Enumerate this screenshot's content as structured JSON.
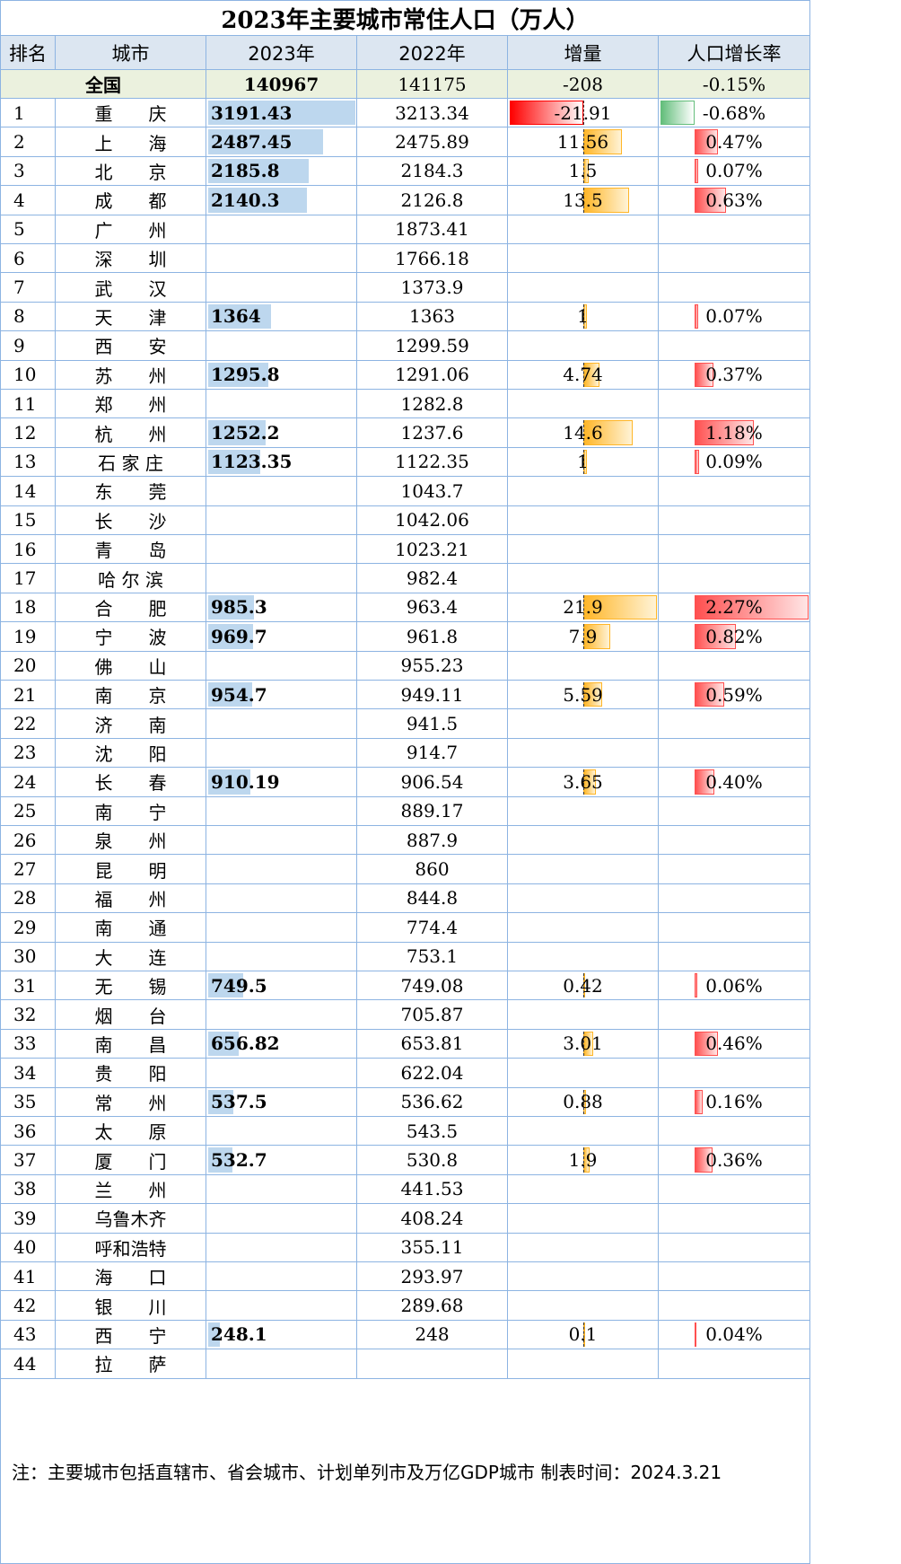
{
  "title": "2023年主要城市常住人口（万人）",
  "headers": [
    "排名",
    "城市",
    "2023年",
    "2022年",
    "增量",
    "人口增长率"
  ],
  "national": {
    "label": "全国",
    "y2023": "140967",
    "y2022": "141175",
    "inc": "-208",
    "rate": "-0.15%"
  },
  "note": "注：主要城市包括直辖市、省会城市、计划单列市及万亿GDP城市   制表时间：2024.3.21",
  "colors": {
    "grid": "#8db4e2",
    "header_bg": "#dce6f1",
    "national_bg": "#ebf1de",
    "bar_blue": "#bdd7ee",
    "bar_orange": "#ffb628",
    "bar_red": "#ff5050",
    "bar_green": "#63be7b"
  },
  "chart_data": {
    "type": "table",
    "title": "2023年主要城市常住人口（万人）",
    "columns": [
      "排名",
      "城市",
      "2023年",
      "2022年",
      "增量",
      "人口增长率"
    ],
    "rows": [
      {
        "rank": "1",
        "city": "重　　庆",
        "y2023": "3191.43",
        "y2022": "3213.34",
        "inc": "-21.91",
        "rate": "-0.68%",
        "inc_value": -21.91,
        "rate_value": -0.68,
        "y2023_value": 3191.43
      },
      {
        "rank": "2",
        "city": "上　　海",
        "y2023": "2487.45",
        "y2022": "2475.89",
        "inc": "11.56",
        "rate": "0.47%",
        "inc_value": 11.56,
        "rate_value": 0.47,
        "y2023_value": 2487.45
      },
      {
        "rank": "3",
        "city": "北　　京",
        "y2023": "2185.8",
        "y2022": "2184.3",
        "inc": "1.5",
        "rate": "0.07%",
        "inc_value": 1.5,
        "rate_value": 0.07,
        "y2023_value": 2185.8
      },
      {
        "rank": "4",
        "city": "成　　都",
        "y2023": "2140.3",
        "y2022": "2126.8",
        "inc": "13.5",
        "rate": "0.63%",
        "inc_value": 13.5,
        "rate_value": 0.63,
        "y2023_value": 2140.3
      },
      {
        "rank": "5",
        "city": "广　　州",
        "y2023": "",
        "y2022": "1873.41",
        "inc": "",
        "rate": ""
      },
      {
        "rank": "6",
        "city": "深　　圳",
        "y2023": "",
        "y2022": "1766.18",
        "inc": "",
        "rate": ""
      },
      {
        "rank": "7",
        "city": "武　　汉",
        "y2023": "",
        "y2022": "1373.9",
        "inc": "",
        "rate": ""
      },
      {
        "rank": "8",
        "city": "天　　津",
        "y2023": "1364",
        "y2022": "1363",
        "inc": "1",
        "rate": "0.07%",
        "inc_value": 1,
        "rate_value": 0.07,
        "y2023_value": 1364
      },
      {
        "rank": "9",
        "city": "西　　安",
        "y2023": "",
        "y2022": "1299.59",
        "inc": "",
        "rate": ""
      },
      {
        "rank": "10",
        "city": "苏　　州",
        "y2023": "1295.8",
        "y2022": "1291.06",
        "inc": "4.74",
        "rate": "0.37%",
        "inc_value": 4.74,
        "rate_value": 0.37,
        "y2023_value": 1295.8
      },
      {
        "rank": "11",
        "city": "郑　　州",
        "y2023": "",
        "y2022": "1282.8",
        "inc": "",
        "rate": ""
      },
      {
        "rank": "12",
        "city": "杭　　州",
        "y2023": "1252.2",
        "y2022": "1237.6",
        "inc": "14.6",
        "rate": "1.18%",
        "inc_value": 14.6,
        "rate_value": 1.18,
        "y2023_value": 1252.2
      },
      {
        "rank": "13",
        "city": "石 家 庄",
        "y2023": "1123.35",
        "y2022": "1122.35",
        "inc": "1",
        "rate": "0.09%",
        "inc_value": 1,
        "rate_value": 0.09,
        "y2023_value": 1123.35
      },
      {
        "rank": "14",
        "city": "东　　莞",
        "y2023": "",
        "y2022": "1043.7",
        "inc": "",
        "rate": ""
      },
      {
        "rank": "15",
        "city": "长　　沙",
        "y2023": "",
        "y2022": "1042.06",
        "inc": "",
        "rate": ""
      },
      {
        "rank": "16",
        "city": "青　　岛",
        "y2023": "",
        "y2022": "1023.21",
        "inc": "",
        "rate": ""
      },
      {
        "rank": "17",
        "city": "哈 尔 滨",
        "y2023": "",
        "y2022": "982.4",
        "inc": "",
        "rate": ""
      },
      {
        "rank": "18",
        "city": "合　　肥",
        "y2023": "985.3",
        "y2022": "963.4",
        "inc": "21.9",
        "rate": "2.27%",
        "inc_value": 21.9,
        "rate_value": 2.27,
        "y2023_value": 985.3
      },
      {
        "rank": "19",
        "city": "宁　　波",
        "y2023": "969.7",
        "y2022": "961.8",
        "inc": "7.9",
        "rate": "0.82%",
        "inc_value": 7.9,
        "rate_value": 0.82,
        "y2023_value": 969.7
      },
      {
        "rank": "20",
        "city": "佛　　山",
        "y2023": "",
        "y2022": "955.23",
        "inc": "",
        "rate": ""
      },
      {
        "rank": "21",
        "city": "南　　京",
        "y2023": "954.7",
        "y2022": "949.11",
        "inc": "5.59",
        "rate": "0.59%",
        "inc_value": 5.59,
        "rate_value": 0.59,
        "y2023_value": 954.7
      },
      {
        "rank": "22",
        "city": "济　　南",
        "y2023": "",
        "y2022": "941.5",
        "inc": "",
        "rate": ""
      },
      {
        "rank": "23",
        "city": "沈　　阳",
        "y2023": "",
        "y2022": "914.7",
        "inc": "",
        "rate": ""
      },
      {
        "rank": "24",
        "city": "长　　春",
        "y2023": "910.19",
        "y2022": "906.54",
        "inc": "3.65",
        "rate": "0.40%",
        "inc_value": 3.65,
        "rate_value": 0.4,
        "y2023_value": 910.19
      },
      {
        "rank": "25",
        "city": "南　　宁",
        "y2023": "",
        "y2022": "889.17",
        "inc": "",
        "rate": ""
      },
      {
        "rank": "26",
        "city": "泉　　州",
        "y2023": "",
        "y2022": "887.9",
        "inc": "",
        "rate": ""
      },
      {
        "rank": "27",
        "city": "昆　　明",
        "y2023": "",
        "y2022": "860",
        "inc": "",
        "rate": ""
      },
      {
        "rank": "28",
        "city": "福　　州",
        "y2023": "",
        "y2022": "844.8",
        "inc": "",
        "rate": ""
      },
      {
        "rank": "29",
        "city": "南　　通",
        "y2023": "",
        "y2022": "774.4",
        "inc": "",
        "rate": ""
      },
      {
        "rank": "30",
        "city": "大　　连",
        "y2023": "",
        "y2022": "753.1",
        "inc": "",
        "rate": ""
      },
      {
        "rank": "31",
        "city": "无　　锡",
        "y2023": "749.5",
        "y2022": "749.08",
        "inc": "0.42",
        "rate": "0.06%",
        "inc_value": 0.42,
        "rate_value": 0.06,
        "y2023_value": 749.5
      },
      {
        "rank": "32",
        "city": "烟　　台",
        "y2023": "",
        "y2022": "705.87",
        "inc": "",
        "rate": ""
      },
      {
        "rank": "33",
        "city": "南　　昌",
        "y2023": "656.82",
        "y2022": "653.81",
        "inc": "3.01",
        "rate": "0.46%",
        "inc_value": 3.01,
        "rate_value": 0.46,
        "y2023_value": 656.82
      },
      {
        "rank": "34",
        "city": "贵　　阳",
        "y2023": "",
        "y2022": "622.04",
        "inc": "",
        "rate": ""
      },
      {
        "rank": "35",
        "city": "常　　州",
        "y2023": "537.5",
        "y2022": "536.62",
        "inc": "0.88",
        "rate": "0.16%",
        "inc_value": 0.88,
        "rate_value": 0.16,
        "y2023_value": 537.5
      },
      {
        "rank": "36",
        "city": "太　　原",
        "y2023": "",
        "y2022": "543.5",
        "inc": "",
        "rate": ""
      },
      {
        "rank": "37",
        "city": "厦　　门",
        "y2023": "532.7",
        "y2022": "530.8",
        "inc": "1.9",
        "rate": "0.36%",
        "inc_value": 1.9,
        "rate_value": 0.36,
        "y2023_value": 532.7
      },
      {
        "rank": "38",
        "city": "兰　　州",
        "y2023": "",
        "y2022": "441.53",
        "inc": "",
        "rate": ""
      },
      {
        "rank": "39",
        "city": "乌鲁木齐",
        "y2023": "",
        "y2022": "408.24",
        "inc": "",
        "rate": ""
      },
      {
        "rank": "40",
        "city": "呼和浩特",
        "y2023": "",
        "y2022": "355.11",
        "inc": "",
        "rate": ""
      },
      {
        "rank": "41",
        "city": "海　　口",
        "y2023": "",
        "y2022": "293.97",
        "inc": "",
        "rate": ""
      },
      {
        "rank": "42",
        "city": "银　　川",
        "y2023": "",
        "y2022": "289.68",
        "inc": "",
        "rate": ""
      },
      {
        "rank": "43",
        "city": "西　　宁",
        "y2023": "248.1",
        "y2022": "248",
        "inc": "0.1",
        "rate": "0.04%",
        "inc_value": 0.1,
        "rate_value": 0.04,
        "y2023_value": 248.1
      },
      {
        "rank": "44",
        "city": "拉　　萨",
        "y2023": "",
        "y2022": "",
        "inc": "",
        "rate": ""
      }
    ]
  }
}
